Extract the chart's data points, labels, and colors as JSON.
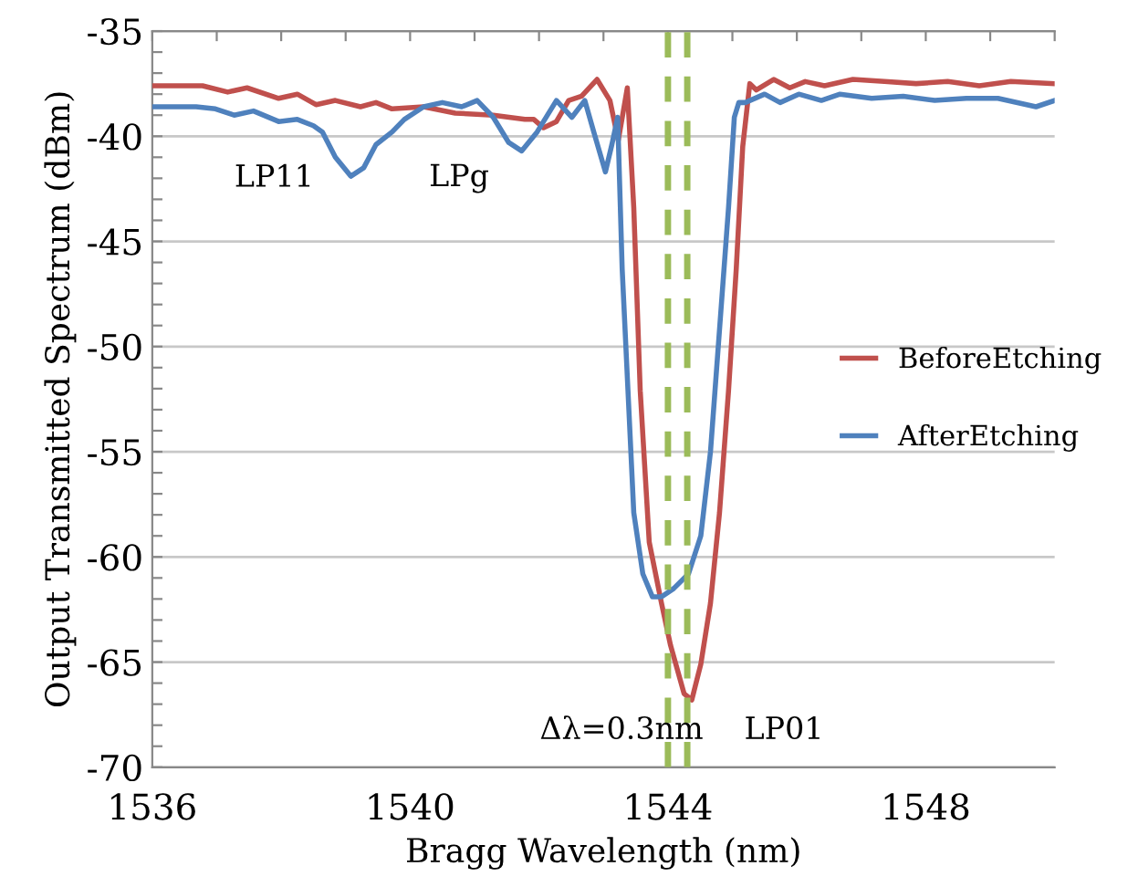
{
  "chart_data": {
    "type": "line",
    "xlabel": "Bragg Wavelength (nm)",
    "ylabel": "Output Transmitted Spectrum (dBm)",
    "xlim": [
      1536,
      1550
    ],
    "ylim": [
      -70,
      -35
    ],
    "xticks": [
      1536,
      {
        "value": 1537,
        "label": null
      },
      {
        "value": 1538,
        "label": null
      },
      {
        "value": 1539,
        "label": null
      },
      1540,
      {
        "value": 1541,
        "label": null
      },
      {
        "value": 1542,
        "label": null
      },
      {
        "value": 1543,
        "label": null
      },
      1544,
      {
        "value": 1545,
        "label": null
      },
      {
        "value": 1546,
        "label": null
      },
      {
        "value": 1547,
        "label": null
      },
      1548,
      {
        "value": 1549,
        "label": null
      },
      {
        "value": 1550,
        "label": null
      }
    ],
    "yticks": [
      -70,
      {
        "value": -69,
        "label": null
      },
      {
        "value": -68,
        "label": null
      },
      {
        "value": -67,
        "label": null
      },
      {
        "value": -66,
        "label": null
      },
      -65,
      {
        "value": -64,
        "label": null
      },
      {
        "value": -63,
        "label": null
      },
      {
        "value": -62,
        "label": null
      },
      {
        "value": -61,
        "label": null
      },
      -60,
      {
        "value": -59,
        "label": null
      },
      {
        "value": -58,
        "label": null
      },
      {
        "value": -57,
        "label": null
      },
      {
        "value": -56,
        "label": null
      },
      -55,
      {
        "value": -54,
        "label": null
      },
      {
        "value": -53,
        "label": null
      },
      {
        "value": -52,
        "label": null
      },
      {
        "value": -51,
        "label": null
      },
      -50,
      {
        "value": -49,
        "label": null
      },
      {
        "value": -48,
        "label": null
      },
      {
        "value": -47,
        "label": null
      },
      {
        "value": -46,
        "label": null
      },
      -45,
      {
        "value": -44,
        "label": null
      },
      {
        "value": -43,
        "label": null
      },
      {
        "value": -42,
        "label": null
      },
      {
        "value": -41,
        "label": null
      },
      -40,
      {
        "value": -39,
        "label": null
      },
      {
        "value": -38,
        "label": null
      },
      {
        "value": -37,
        "label": null
      },
      {
        "value": -36,
        "label": null
      },
      -35
    ],
    "grid": "y",
    "legend": "right",
    "marker": "none",
    "line_style": "solid",
    "series": [
      {
        "name": "BeforeEtching",
        "color": "#c0504d",
        "x": [
          1536.0,
          1536.78,
          1537.17,
          1537.47,
          1537.96,
          1538.25,
          1538.54,
          1538.84,
          1539.23,
          1539.47,
          1539.72,
          1540.21,
          1540.7,
          1541.29,
          1541.78,
          1541.92,
          1542.07,
          1542.27,
          1542.46,
          1542.66,
          1542.9,
          1543.1,
          1543.23,
          1543.37,
          1543.47,
          1543.57,
          1543.71,
          1543.9,
          1544.04,
          1544.25,
          1544.37,
          1544.51,
          1544.66,
          1544.8,
          1544.94,
          1545.06,
          1545.16,
          1545.27,
          1545.37,
          1545.64,
          1545.89,
          1546.13,
          1546.43,
          1546.87,
          1547.36,
          1547.85,
          1548.34,
          1548.83,
          1549.32,
          1550.0
        ],
        "values": [
          -37.6,
          -37.6,
          -37.9,
          -37.7,
          -38.2,
          -38.0,
          -38.5,
          -38.3,
          -38.6,
          -38.4,
          -38.7,
          -38.6,
          -38.9,
          -39.0,
          -39.2,
          -39.2,
          -39.6,
          -39.3,
          -38.3,
          -38.1,
          -37.3,
          -38.3,
          -40.2,
          -37.7,
          -43.4,
          -52.1,
          -59.3,
          -62.2,
          -64.2,
          -66.5,
          -66.8,
          -65.1,
          -62.2,
          -57.9,
          -52.1,
          -46.3,
          -40.5,
          -37.5,
          -37.8,
          -37.3,
          -37.7,
          -37.4,
          -37.6,
          -37.3,
          -37.4,
          -37.5,
          -37.4,
          -37.6,
          -37.4,
          -37.5
        ]
      },
      {
        "name": "AfterEtching",
        "color": "#4f81bd",
        "x": [
          1536.0,
          1536.68,
          1536.98,
          1537.27,
          1537.57,
          1537.96,
          1538.25,
          1538.5,
          1538.64,
          1538.84,
          1539.08,
          1539.28,
          1539.47,
          1539.72,
          1539.91,
          1540.21,
          1540.5,
          1540.8,
          1541.04,
          1541.29,
          1541.53,
          1541.73,
          1541.97,
          1542.27,
          1542.51,
          1542.71,
          1542.85,
          1543.03,
          1543.13,
          1543.22,
          1543.29,
          1543.38,
          1543.47,
          1543.61,
          1543.76,
          1543.9,
          1544.09,
          1544.32,
          1544.51,
          1544.66,
          1544.8,
          1544.94,
          1545.03,
          1545.1,
          1545.2,
          1545.5,
          1545.74,
          1546.03,
          1546.38,
          1546.67,
          1547.16,
          1547.65,
          1548.14,
          1548.63,
          1549.12,
          1549.71,
          1550.0
        ],
        "values": [
          -38.6,
          -38.6,
          -38.7,
          -39.0,
          -38.8,
          -39.3,
          -39.2,
          -39.5,
          -39.8,
          -41.0,
          -41.9,
          -41.5,
          -40.4,
          -39.8,
          -39.2,
          -38.6,
          -38.4,
          -38.6,
          -38.3,
          -39.1,
          -40.3,
          -40.7,
          -39.8,
          -38.3,
          -39.1,
          -38.3,
          -39.8,
          -41.7,
          -40.4,
          -39.1,
          -46.3,
          -52.1,
          -57.9,
          -60.8,
          -61.9,
          -61.9,
          -61.5,
          -60.8,
          -59.0,
          -55.0,
          -49.2,
          -43.4,
          -39.1,
          -38.4,
          -38.4,
          -38.0,
          -38.4,
          -38.0,
          -38.3,
          -38.0,
          -38.2,
          -38.1,
          -38.3,
          -38.2,
          -38.2,
          -38.6,
          -38.3
        ]
      }
    ],
    "ref_lines": [
      {
        "axis": "x",
        "value": 1544.0,
        "color": "#9bbb59",
        "line_style": "dashed"
      },
      {
        "axis": "x",
        "value": 1544.3,
        "color": "#9bbb59",
        "line_style": "dashed"
      }
    ],
    "annotations": [
      "LP11",
      "LPg",
      "LP01",
      "Δλ=0.3nm"
    ]
  }
}
